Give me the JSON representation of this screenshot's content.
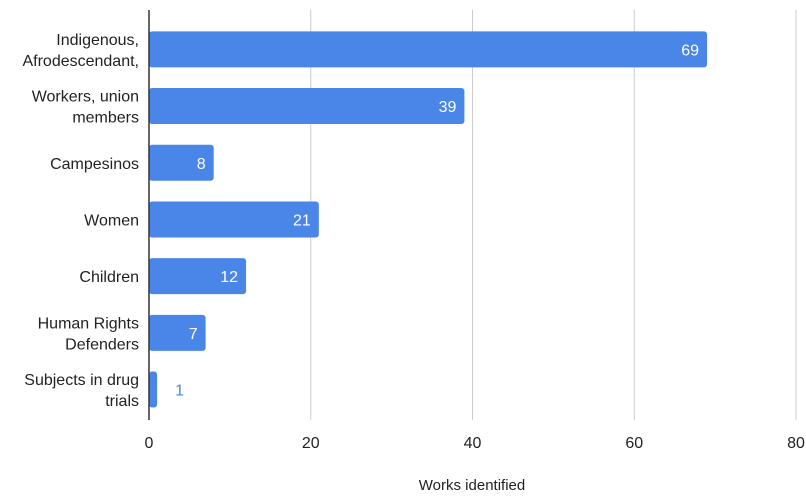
{
  "chart_data": {
    "type": "bar",
    "orientation": "horizontal",
    "categories": [
      [
        "Indigenous,",
        "Afrodescendant,"
      ],
      [
        "Workers, union",
        "members"
      ],
      [
        "Campesinos"
      ],
      [
        "Women"
      ],
      [
        "Children"
      ],
      [
        "Human Rights",
        "Defenders"
      ],
      [
        "Subjects in drug",
        "trials"
      ]
    ],
    "values": [
      69,
      39,
      8,
      21,
      12,
      7,
      1
    ],
    "xlabel": "Works identified",
    "xlim": [
      0,
      80
    ],
    "xticks": [
      0,
      20,
      40,
      60,
      80
    ],
    "grid": true,
    "data_labels": true,
    "bar_color": "#4a86e8",
    "gridline_color": "#cccccc",
    "axis_color": "#333333"
  }
}
